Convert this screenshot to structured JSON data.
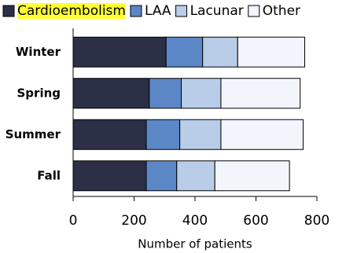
{
  "chart_data": {
    "type": "stacked-barh",
    "categories": [
      "Winter",
      "Spring",
      "Summer",
      "Fall"
    ],
    "series": [
      {
        "name": "Cardioembolism",
        "color": "#2b3047",
        "highlight": "#ffff33",
        "values": [
          305,
          250,
          240,
          240
        ]
      },
      {
        "name": "LAA",
        "color": "#5b87c6",
        "values": [
          120,
          105,
          110,
          100
        ]
      },
      {
        "name": "Lacunar",
        "color": "#b9cde9",
        "values": [
          115,
          130,
          135,
          125
        ]
      },
      {
        "name": "Other",
        "color": "#f2f5fb",
        "values": [
          220,
          260,
          270,
          245
        ]
      }
    ],
    "xlabel": "Number of patients",
    "xlim": [
      0,
      800
    ],
    "xticks": [
      0,
      200,
      400,
      600,
      800
    ],
    "legend": "top"
  }
}
